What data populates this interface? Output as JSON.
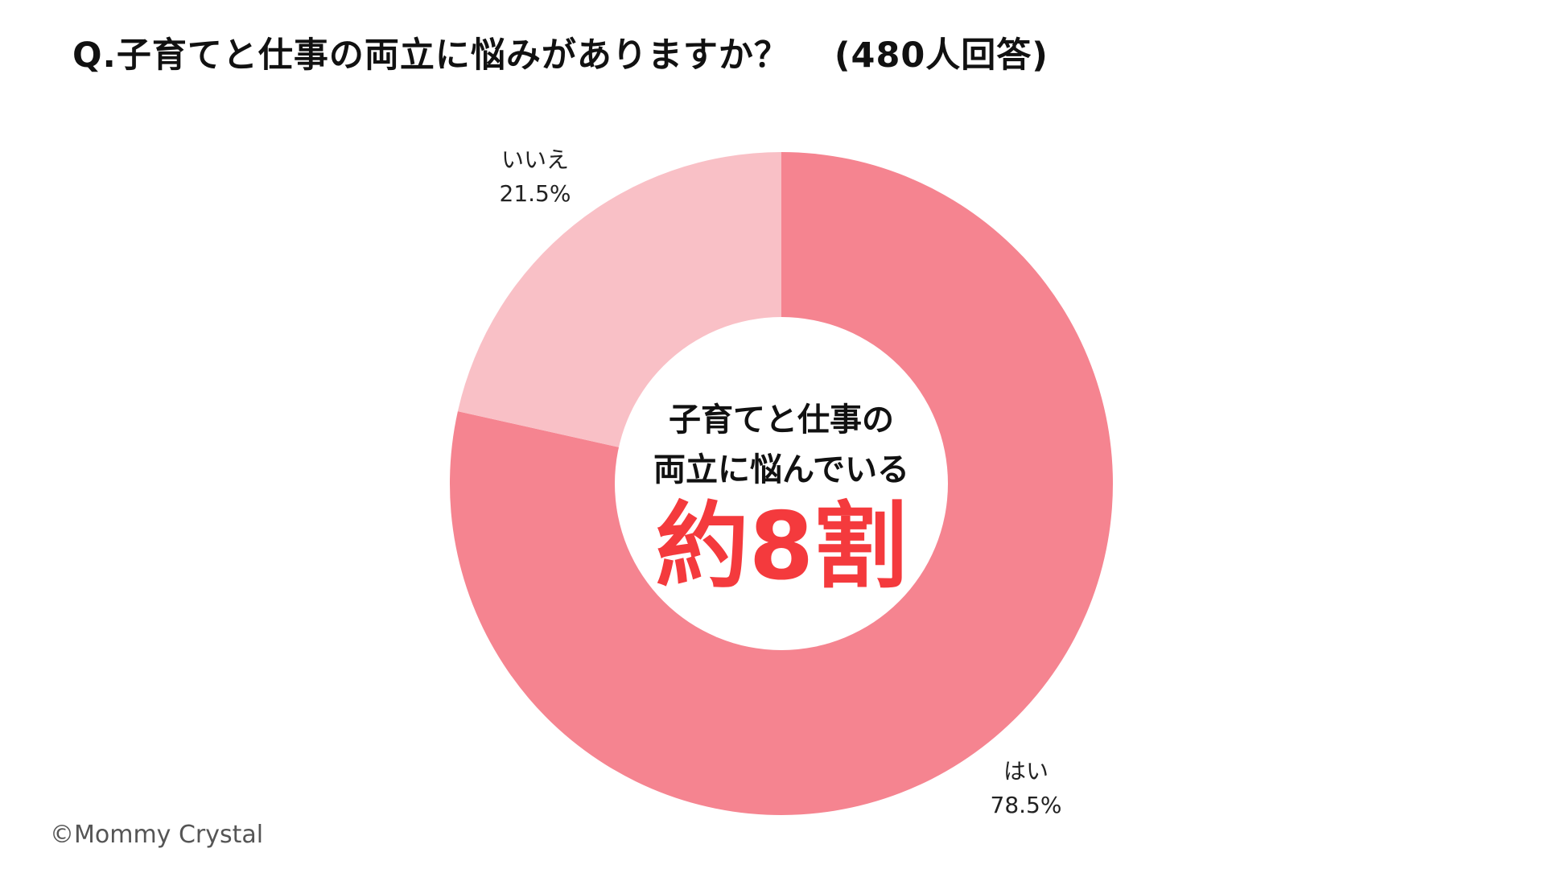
{
  "chart_data": {
    "type": "pie",
    "title": "Q.子育てと仕事の両立に悩みがありますか？",
    "respondents_note": "(480人回答)",
    "categories": [
      "はい",
      "いいえ"
    ],
    "values": [
      78.5,
      21.5
    ],
    "value_labels": [
      "78.5%",
      "21.5%"
    ],
    "colors": [
      "#f58490",
      "#f9c0c6"
    ],
    "center_text": {
      "line1": "子育てと仕事の",
      "line2": "両立に悩んでいる",
      "highlight": "約8割",
      "highlight_color": "#f43a3d"
    }
  },
  "copyright": "©Mommy Crystal"
}
